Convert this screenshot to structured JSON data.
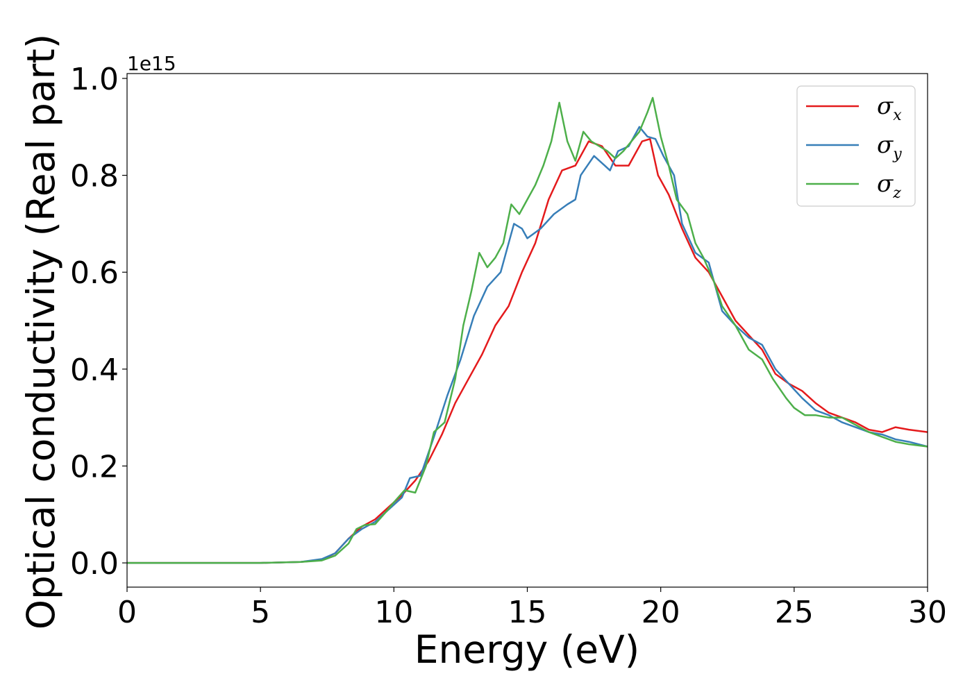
{
  "chart_data": {
    "type": "line",
    "xlabel": "Energy (eV)",
    "ylabel": "Optical conductivity (Real part)",
    "y_offset_label": "1e15",
    "xlim": [
      0,
      30
    ],
    "ylim": [
      -0.05,
      1.01
    ],
    "x_ticks": [
      0,
      5,
      10,
      15,
      20,
      25,
      30
    ],
    "x_tick_labels": [
      "0",
      "5",
      "10",
      "15",
      "20",
      "25",
      "30"
    ],
    "y_ticks": [
      0.0,
      0.2,
      0.4,
      0.6,
      0.8,
      1.0
    ],
    "y_tick_labels": [
      "0.0",
      "0.2",
      "0.4",
      "0.6",
      "0.8",
      "1.0"
    ],
    "grid": false,
    "legend_position": "top-right",
    "series": [
      {
        "name": "σ",
        "subscript": "x",
        "color": "#e41a1c",
        "points": [
          [
            0,
            0
          ],
          [
            5,
            0
          ],
          [
            6.5,
            0.002
          ],
          [
            7.3,
            0.006
          ],
          [
            7.8,
            0.02
          ],
          [
            8.3,
            0.05
          ],
          [
            8.8,
            0.075
          ],
          [
            9.3,
            0.09
          ],
          [
            9.8,
            0.115
          ],
          [
            10.3,
            0.14
          ],
          [
            10.8,
            0.17
          ],
          [
            11.3,
            0.21
          ],
          [
            11.8,
            0.265
          ],
          [
            12.3,
            0.33
          ],
          [
            12.8,
            0.38
          ],
          [
            13.3,
            0.43
          ],
          [
            13.8,
            0.49
          ],
          [
            14.3,
            0.53
          ],
          [
            14.8,
            0.6
          ],
          [
            15.3,
            0.66
          ],
          [
            15.8,
            0.75
          ],
          [
            16.3,
            0.81
          ],
          [
            16.8,
            0.82
          ],
          [
            17.3,
            0.87
          ],
          [
            17.8,
            0.86
          ],
          [
            18.3,
            0.82
          ],
          [
            18.8,
            0.82
          ],
          [
            19.3,
            0.87
          ],
          [
            19.6,
            0.875
          ],
          [
            19.9,
            0.8
          ],
          [
            20.3,
            0.76
          ],
          [
            20.8,
            0.69
          ],
          [
            21.3,
            0.63
          ],
          [
            21.8,
            0.6
          ],
          [
            22.3,
            0.55
          ],
          [
            22.8,
            0.5
          ],
          [
            23.3,
            0.47
          ],
          [
            23.8,
            0.44
          ],
          [
            24.3,
            0.39
          ],
          [
            24.8,
            0.37
          ],
          [
            25.3,
            0.355
          ],
          [
            25.8,
            0.33
          ],
          [
            26.3,
            0.31
          ],
          [
            26.8,
            0.3
          ],
          [
            27.3,
            0.29
          ],
          [
            27.8,
            0.275
          ],
          [
            28.3,
            0.27
          ],
          [
            28.8,
            0.28
          ],
          [
            29.3,
            0.275
          ],
          [
            30,
            0.27
          ]
        ]
      },
      {
        "name": "σ",
        "subscript": "y",
        "color": "#377eb8",
        "points": [
          [
            0,
            0
          ],
          [
            5,
            0
          ],
          [
            6.5,
            0.002
          ],
          [
            7.3,
            0.008
          ],
          [
            7.8,
            0.02
          ],
          [
            8.3,
            0.05
          ],
          [
            8.8,
            0.07
          ],
          [
            9.3,
            0.085
          ],
          [
            9.8,
            0.11
          ],
          [
            10.3,
            0.135
          ],
          [
            10.6,
            0.175
          ],
          [
            11.0,
            0.18
          ],
          [
            11.5,
            0.26
          ],
          [
            12.0,
            0.345
          ],
          [
            12.5,
            0.42
          ],
          [
            13.0,
            0.51
          ],
          [
            13.5,
            0.57
          ],
          [
            14.0,
            0.6
          ],
          [
            14.5,
            0.7
          ],
          [
            14.8,
            0.69
          ],
          [
            15.0,
            0.67
          ],
          [
            15.5,
            0.69
          ],
          [
            16.0,
            0.72
          ],
          [
            16.5,
            0.74
          ],
          [
            16.8,
            0.75
          ],
          [
            17.0,
            0.8
          ],
          [
            17.5,
            0.84
          ],
          [
            17.9,
            0.82
          ],
          [
            18.1,
            0.81
          ],
          [
            18.4,
            0.85
          ],
          [
            18.8,
            0.86
          ],
          [
            19.2,
            0.9
          ],
          [
            19.5,
            0.88
          ],
          [
            19.8,
            0.875
          ],
          [
            20.1,
            0.84
          ],
          [
            20.5,
            0.8
          ],
          [
            20.8,
            0.7
          ],
          [
            21.3,
            0.64
          ],
          [
            21.8,
            0.62
          ],
          [
            22.3,
            0.52
          ],
          [
            22.8,
            0.49
          ],
          [
            23.3,
            0.465
          ],
          [
            23.8,
            0.45
          ],
          [
            24.3,
            0.4
          ],
          [
            24.8,
            0.37
          ],
          [
            25.3,
            0.34
          ],
          [
            25.8,
            0.315
          ],
          [
            26.3,
            0.305
          ],
          [
            26.8,
            0.29
          ],
          [
            27.3,
            0.28
          ],
          [
            27.8,
            0.27
          ],
          [
            28.3,
            0.265
          ],
          [
            28.8,
            0.255
          ],
          [
            29.3,
            0.25
          ],
          [
            30,
            0.24
          ]
        ]
      },
      {
        "name": "σ",
        "subscript": "z",
        "color": "#4daf4a",
        "points": [
          [
            0,
            0
          ],
          [
            5,
            0
          ],
          [
            6.5,
            0.002
          ],
          [
            7.3,
            0.005
          ],
          [
            7.8,
            0.015
          ],
          [
            8.3,
            0.04
          ],
          [
            8.6,
            0.07
          ],
          [
            8.9,
            0.078
          ],
          [
            9.3,
            0.08
          ],
          [
            9.7,
            0.105
          ],
          [
            10.0,
            0.125
          ],
          [
            10.4,
            0.15
          ],
          [
            10.8,
            0.145
          ],
          [
            11.2,
            0.2
          ],
          [
            11.5,
            0.27
          ],
          [
            11.9,
            0.29
          ],
          [
            12.3,
            0.38
          ],
          [
            12.6,
            0.49
          ],
          [
            12.9,
            0.56
          ],
          [
            13.2,
            0.64
          ],
          [
            13.5,
            0.61
          ],
          [
            13.8,
            0.63
          ],
          [
            14.1,
            0.66
          ],
          [
            14.4,
            0.74
          ],
          [
            14.7,
            0.72
          ],
          [
            15.0,
            0.75
          ],
          [
            15.3,
            0.78
          ],
          [
            15.6,
            0.82
          ],
          [
            15.9,
            0.87
          ],
          [
            16.2,
            0.95
          ],
          [
            16.5,
            0.87
          ],
          [
            16.8,
            0.83
          ],
          [
            17.1,
            0.89
          ],
          [
            17.4,
            0.87
          ],
          [
            17.7,
            0.86
          ],
          [
            18.0,
            0.85
          ],
          [
            18.3,
            0.835
          ],
          [
            18.6,
            0.85
          ],
          [
            18.9,
            0.87
          ],
          [
            19.2,
            0.89
          ],
          [
            19.5,
            0.93
          ],
          [
            19.7,
            0.96
          ],
          [
            20.0,
            0.88
          ],
          [
            20.3,
            0.82
          ],
          [
            20.6,
            0.75
          ],
          [
            21.0,
            0.72
          ],
          [
            21.3,
            0.66
          ],
          [
            21.6,
            0.63
          ],
          [
            22.0,
            0.58
          ],
          [
            22.3,
            0.53
          ],
          [
            22.8,
            0.49
          ],
          [
            23.3,
            0.44
          ],
          [
            23.8,
            0.42
          ],
          [
            24.2,
            0.38
          ],
          [
            24.7,
            0.34
          ],
          [
            25.0,
            0.32
          ],
          [
            25.4,
            0.305
          ],
          [
            25.8,
            0.305
          ],
          [
            26.3,
            0.3
          ],
          [
            26.8,
            0.3
          ],
          [
            27.3,
            0.285
          ],
          [
            27.8,
            0.27
          ],
          [
            28.3,
            0.26
          ],
          [
            28.8,
            0.25
          ],
          [
            29.3,
            0.245
          ],
          [
            30,
            0.24
          ]
        ]
      }
    ]
  }
}
